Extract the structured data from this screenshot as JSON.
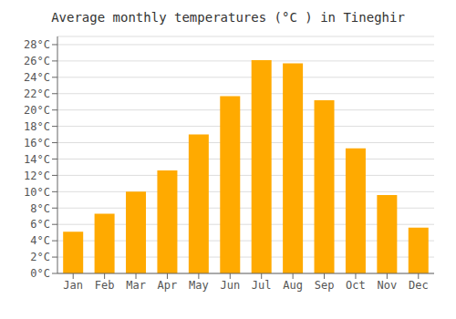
{
  "chart_data": {
    "type": "bar",
    "title": "Average monthly temperatures (°C ) in Tineghir",
    "categories": [
      "Jan",
      "Feb",
      "Mar",
      "Apr",
      "May",
      "Jun",
      "Jul",
      "Aug",
      "Sep",
      "Oct",
      "Nov",
      "Dec"
    ],
    "values": [
      5.1,
      7.3,
      10.0,
      12.6,
      17.0,
      21.7,
      26.1,
      25.7,
      21.2,
      15.3,
      9.6,
      5.6
    ],
    "color": "#FFAA00",
    "ylim": [
      0,
      29
    ],
    "yticks": [
      {
        "value": 0,
        "label": "0°C"
      },
      {
        "value": 2,
        "label": "2°C"
      },
      {
        "value": 4,
        "label": "4°C"
      },
      {
        "value": 6,
        "label": "6°C"
      },
      {
        "value": 8,
        "label": "8°C"
      },
      {
        "value": 10,
        "label": "10°C"
      },
      {
        "value": 12,
        "label": "12°C"
      },
      {
        "value": 14,
        "label": "14°C"
      },
      {
        "value": 16,
        "label": "16°C"
      },
      {
        "value": 18,
        "label": "18°C"
      },
      {
        "value": 20,
        "label": "20°C"
      },
      {
        "value": 22,
        "label": "22°C"
      },
      {
        "value": 24,
        "label": "24°C"
      },
      {
        "value": 26,
        "label": "26°C"
      },
      {
        "value": 28,
        "label": "28°C"
      }
    ],
    "grid": true
  }
}
